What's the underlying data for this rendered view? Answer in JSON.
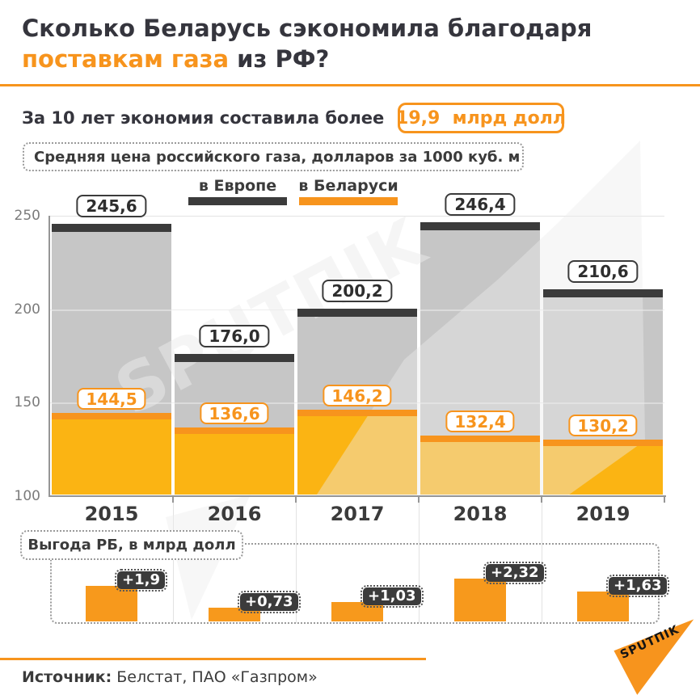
{
  "title": {
    "line1": "Сколько Беларусь сэкономила благодаря",
    "line2_highlight": "поставкам газа",
    "line2_rest": " из РФ?"
  },
  "subtitle": {
    "text": "За 10 лет экономия составила более",
    "badge": "19,9  млрд долл"
  },
  "chart_header": "Средняя цена российского газа, долларов за 1000 куб. м",
  "chart_data": [
    {
      "type": "step-area",
      "title": "Средняя цена российского газа, долларов за 1000 куб. м",
      "categories": [
        "2015",
        "2016",
        "2017",
        "2018",
        "2019"
      ],
      "series": [
        {
          "name": "в Европе",
          "values": [
            245.6,
            176.0,
            200.2,
            246.4,
            210.6
          ],
          "labels": [
            "245,6",
            "176,0",
            "200,2",
            "246,4",
            "210,6"
          ],
          "color": "#3b3b3b",
          "fill": "#c6c6c6"
        },
        {
          "name": "в Беларуси",
          "values": [
            144.5,
            136.6,
            146.2,
            132.4,
            130.2
          ],
          "labels": [
            "144,5",
            "136,6",
            "146,2",
            "132,4",
            "130,2"
          ],
          "color": "#f7941d",
          "fill": "#fbb413"
        }
      ],
      "ylim": [
        100,
        250
      ],
      "yticks": [
        250,
        200,
        150,
        100
      ],
      "grid": true,
      "legend_position": "top"
    },
    {
      "type": "bar",
      "title": "Выгода РБ, в млрд долл",
      "categories": [
        "2015",
        "2016",
        "2017",
        "2018",
        "2019"
      ],
      "values": [
        1.9,
        0.73,
        1.03,
        2.32,
        1.63
      ],
      "labels": [
        "+1,9",
        "+0,73",
        "+1,03",
        "+2,32",
        "+1,63"
      ],
      "bar_color": "#f7991c"
    }
  ],
  "footer": {
    "source_label": "Источник:",
    "source_text": " Белстат, ПАО «Газпром»"
  },
  "brand": {
    "logo_text": "SPUTПIK",
    "watermark_text": "SPUTПIK",
    "color": "#f7941d"
  }
}
